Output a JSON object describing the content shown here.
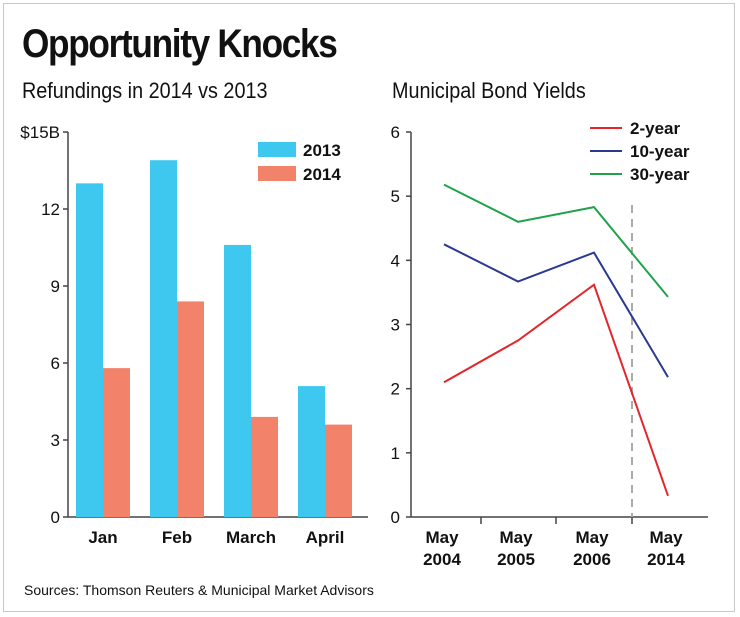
{
  "title": "Opportunity Knocks",
  "source": "Sources: Thomson Reuters & Municipal Market Advisors",
  "colors": {
    "bar_2013": "#3ec8f0",
    "bar_2014": "#f2826a",
    "line_2yr": "#e3262b",
    "line_10yr": "#2b3990",
    "line_30yr": "#1fa24a",
    "axis": "#444444",
    "divider": "#aaaaaa"
  },
  "chart_data": [
    {
      "type": "bar",
      "title": "Refundings in 2014 vs 2013",
      "xlabel": "",
      "ylabel": "",
      "categories": [
        "Jan",
        "Feb",
        "March",
        "April"
      ],
      "series": [
        {
          "name": "2013",
          "values": [
            13.0,
            13.9,
            10.6,
            5.1
          ]
        },
        {
          "name": "2014",
          "values": [
            5.8,
            8.4,
            3.9,
            3.6
          ]
        }
      ],
      "ylim": [
        0,
        15
      ],
      "yticks": [
        {
          "value": 0,
          "label": "0"
        },
        {
          "value": 3,
          "label": "3"
        },
        {
          "value": 6,
          "label": "6"
        },
        {
          "value": 9,
          "label": "9"
        },
        {
          "value": 12,
          "label": "12"
        },
        {
          "value": 15,
          "label": "$15B"
        }
      ],
      "legend": "top-right",
      "grid": false
    },
    {
      "type": "line",
      "title": "Municipal Bond Yields",
      "xlabel": "",
      "ylabel": "",
      "x": [
        "May 2004",
        "May 2005",
        "May 2006",
        "May 2014"
      ],
      "x_label_lines": [
        [
          "May",
          "2004"
        ],
        [
          "May",
          "2005"
        ],
        [
          "May",
          "2006"
        ],
        [
          "May",
          "2014"
        ]
      ],
      "series": [
        {
          "name": "2-year",
          "values": [
            2.1,
            2.75,
            3.62,
            0.33
          ]
        },
        {
          "name": "10-year",
          "values": [
            4.25,
            3.67,
            4.12,
            2.18
          ]
        },
        {
          "name": "30-year",
          "values": [
            5.18,
            4.6,
            4.83,
            3.43
          ]
        }
      ],
      "ylim": [
        0,
        6
      ],
      "yticks": [
        0,
        1,
        2,
        3,
        4,
        5,
        6
      ],
      "break_after_index": 2,
      "legend": "top-right",
      "grid": false
    }
  ]
}
